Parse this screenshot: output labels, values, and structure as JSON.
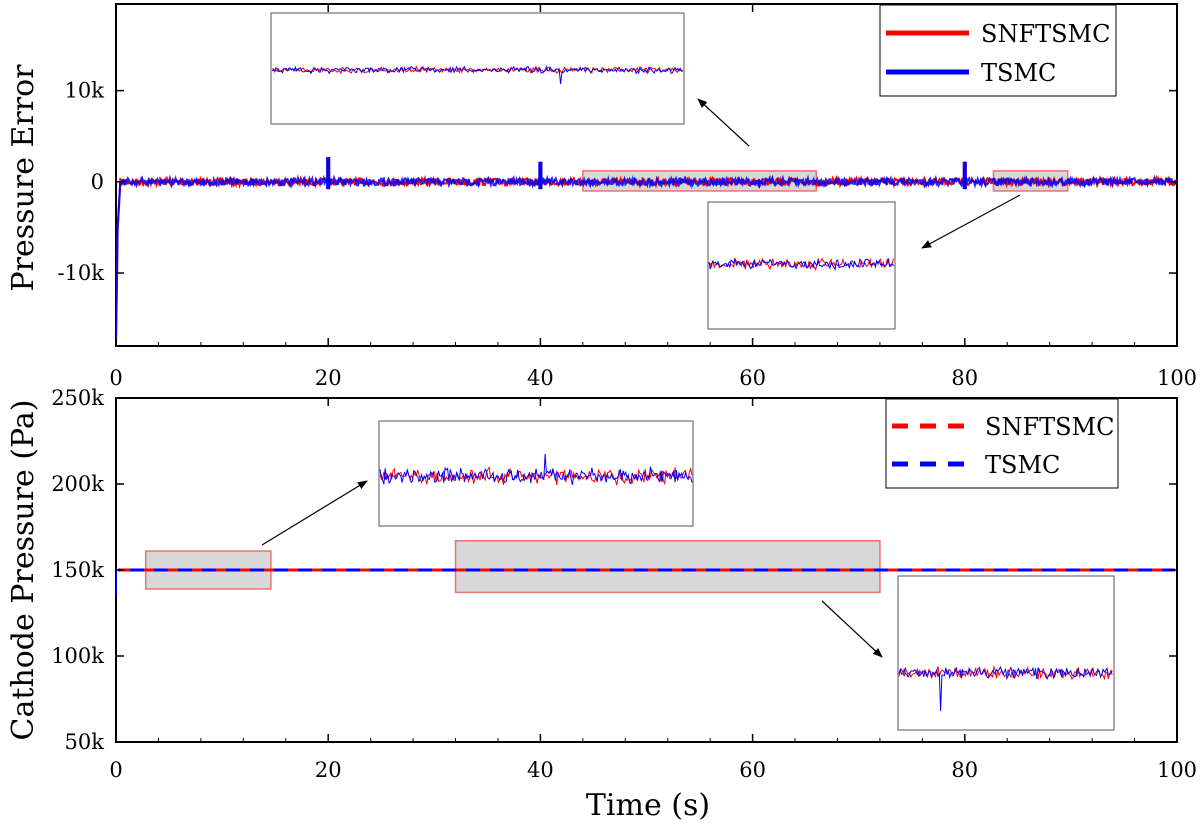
{
  "chart_data": [
    {
      "type": "line",
      "ylabel": "Pressure Error",
      "xlabel": "",
      "xlim": [
        0,
        100
      ],
      "ylim": [
        -18000,
        19500
      ],
      "xticks": [
        0,
        20,
        40,
        60,
        80,
        100
      ],
      "xtick_labels": [
        "0",
        "20",
        "40",
        "60",
        "80",
        "100"
      ],
      "yticks": [
        10000,
        0,
        -10000
      ],
      "ytick_labels": [
        "10k",
        "0",
        "-10k"
      ],
      "legend_position": "top-right",
      "series": [
        {
          "name": "SNFTSMC",
          "color": "#ff0000",
          "style": "solid",
          "events": [
            {
              "t": 0,
              "value": -17300
            },
            {
              "t": 20,
              "min": -800,
              "max": 2700
            },
            {
              "t": 40,
              "min": -800,
              "max": 2200
            },
            {
              "t": 80,
              "min": -800,
              "max": 2200
            }
          ],
          "steady_value": 0
        },
        {
          "name": "TSMC",
          "color": "#0000ff",
          "style": "solid",
          "events": [
            {
              "t": 0,
              "value": -17300
            },
            {
              "t": 20,
              "min": -800,
              "max": 2700
            },
            {
              "t": 40,
              "min": -800,
              "max": 2200
            },
            {
              "t": 80,
              "min": -800,
              "max": 2200
            }
          ],
          "steady_value": 0
        }
      ],
      "zoom_regions": [
        {
          "x": [
            44,
            66
          ],
          "y": [
            -1000,
            1200
          ]
        },
        {
          "x": [
            82.7,
            89.7
          ],
          "y": [
            -1000,
            1200
          ]
        }
      ]
    },
    {
      "type": "line",
      "ylabel": "Cathode Pressure (Pa)",
      "xlabel": "Time (s)",
      "xlim": [
        0,
        100
      ],
      "ylim": [
        50000,
        250000
      ],
      "xticks": [
        0,
        20,
        40,
        60,
        80,
        100
      ],
      "xtick_labels": [
        "0",
        "20",
        "40",
        "60",
        "80",
        "100"
      ],
      "yticks": [
        250000,
        200000,
        150000,
        100000,
        50000
      ],
      "ytick_labels": [
        "250k",
        "200k",
        "150k",
        "100k",
        "50k"
      ],
      "legend_position": "top-right",
      "series": [
        {
          "name": "SNFTSMC",
          "color": "#ff0000",
          "style": "dashed",
          "value": 150000,
          "start_value": 135000
        },
        {
          "name": "TSMC",
          "color": "#0000ff",
          "style": "dashed",
          "value": 150000,
          "start_value": 135000
        }
      ],
      "zoom_regions": [
        {
          "x": [
            2.8,
            14.6
          ],
          "y": [
            139000,
            161000
          ]
        },
        {
          "x": [
            32,
            72
          ],
          "y": [
            137000,
            167000
          ]
        }
      ]
    }
  ]
}
